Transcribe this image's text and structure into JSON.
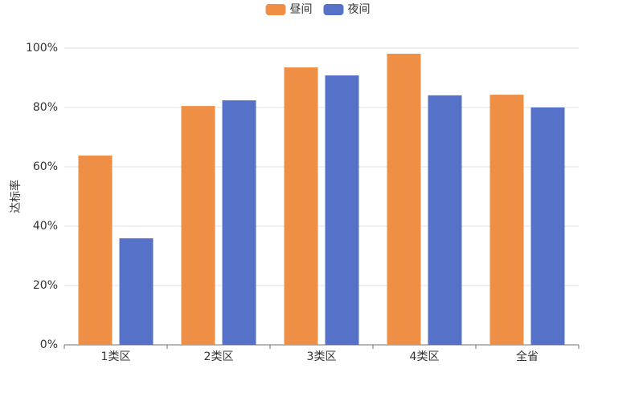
{
  "chart_data": {
    "type": "bar",
    "y_label": "达标率",
    "categories": [
      "1类区",
      "2类区",
      "3类区",
      "4类区",
      "全省"
    ],
    "series": [
      {
        "name": "昼间",
        "color": "#ee8f45",
        "values": [
          63.8,
          80.5,
          93.5,
          98.1,
          84.3
        ]
      },
      {
        "name": "夜间",
        "color": "#5672c8",
        "values": [
          35.9,
          82.4,
          90.8,
          84.1,
          80.0
        ]
      }
    ],
    "ylim": [
      0,
      100
    ],
    "yticks": [
      {
        "value": 0,
        "label": "0%"
      },
      {
        "value": 20,
        "label": "20%"
      },
      {
        "value": 40,
        "label": "40%"
      },
      {
        "value": 60,
        "label": "60%"
      },
      {
        "value": 80,
        "label": "80%"
      },
      {
        "value": 100,
        "label": "100%"
      }
    ],
    "grid": true,
    "legend": "top"
  }
}
